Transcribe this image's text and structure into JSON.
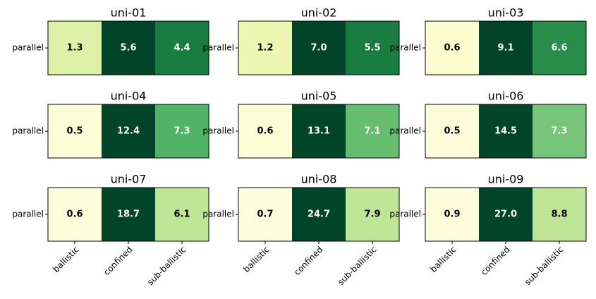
{
  "chart_data": [
    {
      "type": "heatmap",
      "title": "uni-01",
      "y_categories": [
        "parallel"
      ],
      "values": [
        [
          1.3,
          5.6,
          4.4
        ]
      ],
      "colormap": "YlGn"
    },
    {
      "type": "heatmap",
      "title": "uni-02",
      "y_categories": [
        "parallel"
      ],
      "values": [
        [
          1.2,
          7.0,
          5.5
        ]
      ],
      "value_labels": [
        [
          "1.2",
          "7.0",
          "5.5"
        ]
      ],
      "colormap": "YlGn"
    },
    {
      "type": "heatmap",
      "title": "uni-03",
      "y_categories": [
        "parallel"
      ],
      "values": [
        [
          0.6,
          9.1,
          6.6
        ]
      ],
      "colormap": "YlGn"
    },
    {
      "type": "heatmap",
      "title": "uni-04",
      "y_categories": [
        "parallel"
      ],
      "values": [
        [
          0.5,
          12.4,
          7.3
        ]
      ],
      "colormap": "YlGn"
    },
    {
      "type": "heatmap",
      "title": "uni-05",
      "y_categories": [
        "parallel"
      ],
      "values": [
        [
          0.6,
          13.1,
          7.1
        ]
      ],
      "colormap": "YlGn"
    },
    {
      "type": "heatmap",
      "title": "uni-06",
      "y_categories": [
        "parallel"
      ],
      "values": [
        [
          0.5,
          14.5,
          7.3
        ]
      ],
      "colormap": "YlGn"
    },
    {
      "type": "heatmap",
      "title": "uni-07",
      "y_categories": [
        "parallel"
      ],
      "x_categories": [
        "ballistic",
        "confined",
        "sub-ballistic"
      ],
      "values": [
        [
          0.6,
          18.7,
          6.1
        ]
      ],
      "colormap": "YlGn"
    },
    {
      "type": "heatmap",
      "title": "uni-08",
      "y_categories": [
        "parallel"
      ],
      "x_categories": [
        "ballistic",
        "confined",
        "sub-ballistic"
      ],
      "values": [
        [
          0.7,
          24.7,
          7.9
        ]
      ],
      "colormap": "YlGn"
    },
    {
      "type": "heatmap",
      "title": "uni-09",
      "y_categories": [
        "parallel"
      ],
      "x_categories": [
        "ballistic",
        "confined",
        "sub-ballistic"
      ],
      "values": [
        [
          0.9,
          27.0,
          8.8
        ]
      ],
      "value_labels": [
        [
          "0.9",
          "27.0",
          "8.8"
        ]
      ],
      "colormap": "YlGn"
    }
  ]
}
